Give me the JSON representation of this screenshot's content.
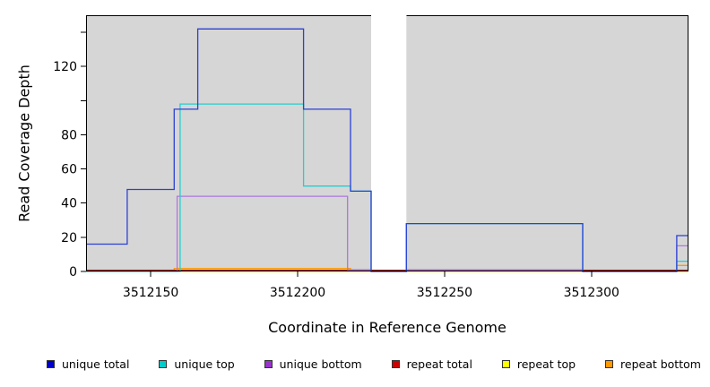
{
  "figure": {
    "background": "#FFFFFF",
    "plot_background_shaded": "#D6D6D6",
    "border_color": "#000000"
  },
  "axes": {
    "x_label": "Coordinate in Reference Genome",
    "y_label": "Read Coverage Depth"
  },
  "chart_data": {
    "type": "line",
    "style": "step",
    "title": "",
    "xlabel": "Coordinate in Reference Genome",
    "ylabel": "Read Coverage Depth",
    "xlim": [
      3512128,
      3512333
    ],
    "ylim": [
      0,
      150
    ],
    "x_ticks": [
      3512150,
      3512200,
      3512250,
      3512300
    ],
    "y_ticks": [
      0,
      20,
      40,
      60,
      80,
      120
    ],
    "y_ticks_unlabeled": [
      100,
      140
    ],
    "grid": false,
    "legend_position": "bottom",
    "shaded_regions": [
      {
        "x0": 3512128,
        "x1": 3512225
      },
      {
        "x0": 3512237,
        "x1": 3512333
      }
    ],
    "gap_region": {
      "x0": 3512225,
      "x1": 3512237
    },
    "series": [
      {
        "name": "repeat top",
        "color": "#F2F200",
        "points": [
          [
            3512128,
            0
          ],
          [
            3512333,
            0
          ]
        ]
      },
      {
        "name": "repeat bottom",
        "color": "#FF9900",
        "points": [
          [
            3512128,
            0.3
          ],
          [
            3512158,
            1.8
          ],
          [
            3512218,
            0.3
          ],
          [
            3512329,
            3.5
          ],
          [
            3512333,
            3.5
          ]
        ]
      },
      {
        "name": "repeat total",
        "color": "#AA2222",
        "points": [
          [
            3512128,
            0.7
          ],
          [
            3512333,
            0.7
          ]
        ]
      },
      {
        "name": "unique bottom",
        "color": "#AD77DD",
        "points": [
          [
            3512128,
            0
          ],
          [
            3512159,
            44
          ],
          [
            3512217,
            1
          ],
          [
            3512225,
            0
          ],
          [
            3512237,
            1
          ],
          [
            3512297,
            0
          ],
          [
            3512329,
            15
          ],
          [
            3512333,
            15
          ]
        ]
      },
      {
        "name": "unique top",
        "color": "#21CFCF",
        "points": [
          [
            3512128,
            0
          ],
          [
            3512160,
            98
          ],
          [
            3512202,
            50
          ],
          [
            3512218,
            47
          ],
          [
            3512225,
            0
          ],
          [
            3512237,
            28
          ],
          [
            3512297,
            0
          ],
          [
            3512329,
            6
          ],
          [
            3512333,
            6
          ]
        ]
      },
      {
        "name": "unique total",
        "color": "#2B41D4",
        "points": [
          [
            3512128,
            16
          ],
          [
            3512142,
            48
          ],
          [
            3512158,
            95
          ],
          [
            3512166,
            142
          ],
          [
            3512202,
            95
          ],
          [
            3512218,
            47
          ],
          [
            3512225,
            0
          ],
          [
            3512237,
            28
          ],
          [
            3512297,
            0
          ],
          [
            3512329,
            21
          ],
          [
            3512333,
            21
          ]
        ]
      }
    ]
  },
  "legend": {
    "items": [
      {
        "label": "unique total",
        "color": "#0000CC"
      },
      {
        "label": "unique top",
        "color": "#00CCCC"
      },
      {
        "label": "unique bottom",
        "color": "#9933CC"
      },
      {
        "label": "repeat total",
        "color": "#CC0000"
      },
      {
        "label": "repeat top",
        "color": "#FFFF00"
      },
      {
        "label": "repeat bottom",
        "color": "#FF9900"
      }
    ]
  }
}
